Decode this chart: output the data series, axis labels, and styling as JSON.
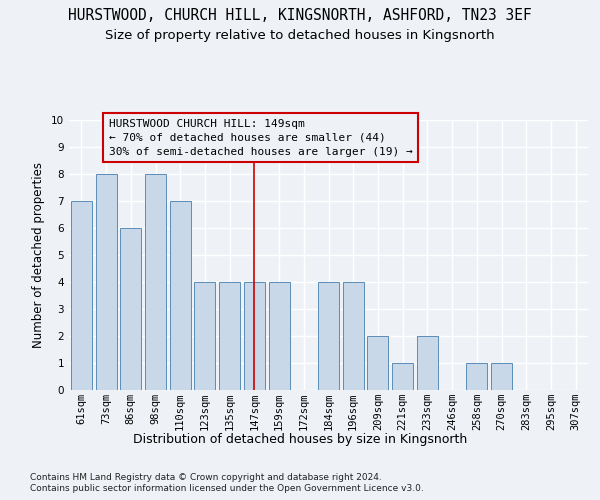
{
  "title1": "HURSTWOOD, CHURCH HILL, KINGSNORTH, ASHFORD, TN23 3EF",
  "title2": "Size of property relative to detached houses in Kingsnorth",
  "xlabel": "Distribution of detached houses by size in Kingsnorth",
  "ylabel": "Number of detached properties",
  "footer1": "Contains HM Land Registry data © Crown copyright and database right 2024.",
  "footer2": "Contains public sector information licensed under the Open Government Licence v3.0.",
  "categories": [
    "61sqm",
    "73sqm",
    "86sqm",
    "98sqm",
    "110sqm",
    "123sqm",
    "135sqm",
    "147sqm",
    "159sqm",
    "172sqm",
    "184sqm",
    "196sqm",
    "209sqm",
    "221sqm",
    "233sqm",
    "246sqm",
    "258sqm",
    "270sqm",
    "283sqm",
    "295sqm",
    "307sqm"
  ],
  "values": [
    7,
    8,
    6,
    8,
    7,
    4,
    4,
    4,
    4,
    0,
    4,
    4,
    2,
    1,
    2,
    0,
    1,
    1,
    0,
    0,
    0
  ],
  "bar_color": "#c8d8e8",
  "bar_edgecolor": "#5b8db8",
  "highlight_index": 7,
  "highlight_color": "#cc0000",
  "annotation_line1": "HURSTWOOD CHURCH HILL: 149sqm",
  "annotation_line2": "← 70% of detached houses are smaller (44)",
  "annotation_line3": "30% of semi-detached houses are larger (19) →",
  "annotation_box_edgecolor": "#cc0000",
  "ylim": [
    0,
    10
  ],
  "yticks": [
    0,
    1,
    2,
    3,
    4,
    5,
    6,
    7,
    8,
    9,
    10
  ],
  "background_color": "#eef2f7",
  "grid_color": "#ffffff",
  "title_fontsize": 10.5,
  "subtitle_fontsize": 9.5,
  "axis_label_fontsize": 8.5,
  "tick_fontsize": 7.5,
  "annotation_fontsize": 8,
  "footer_fontsize": 6.5
}
